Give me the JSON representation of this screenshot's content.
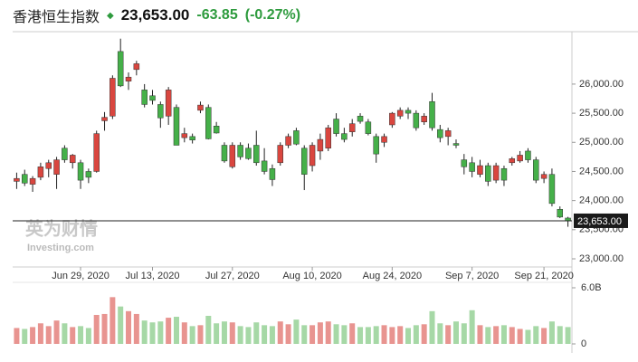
{
  "chart_data": {
    "type": "candlestick",
    "title": "香港恒生指数",
    "change": "-63.85",
    "change_pct": "(-0.27%)",
    "last_price": {
      "value": 23653,
      "label": "23,653.00"
    },
    "watermark": [
      "英为财情",
      "Investing.com"
    ],
    "categories": [
      null,
      null,
      null,
      null,
      null,
      null,
      null,
      null,
      "Jun 29, 2020",
      null,
      null,
      null,
      null,
      null,
      null,
      null,
      null,
      "Jul 13, 2020",
      null,
      null,
      null,
      null,
      null,
      null,
      null,
      null,
      null,
      "Jul 27, 2020",
      null,
      null,
      null,
      null,
      null,
      null,
      null,
      null,
      null,
      "Aug 10, 2020",
      null,
      null,
      null,
      null,
      null,
      null,
      null,
      null,
      null,
      "Aug 24, 2020",
      null,
      null,
      null,
      null,
      null,
      null,
      null,
      null,
      null,
      "Sep 7, 2020",
      null,
      null,
      null,
      null,
      null,
      null,
      null,
      null,
      "Sep 21, 2020",
      null,
      null,
      null
    ],
    "open": [
      24330,
      24450,
      24280,
      24400,
      24550,
      24450,
      24900,
      24650,
      24650,
      24500,
      24500,
      25370,
      25450,
      26560,
      26050,
      26250,
      25900,
      25800,
      25650,
      25450,
      25600,
      25080,
      25100,
      25550,
      25600,
      25280,
      24950,
      24580,
      24950,
      24900,
      24950,
      24680,
      24550,
      24650,
      24950,
      25200,
      24900,
      24600,
      24850,
      24900,
      25400,
      25150,
      25180,
      25450,
      25350,
      25100,
      25000,
      25300,
      25450,
      25550,
      25500,
      25350,
      25700,
      25220,
      25100,
      24980,
      24700,
      24650,
      24450,
      24600,
      24350,
      24550,
      24650,
      24680,
      24850,
      24700,
      24380,
      24450,
      23850,
      23700
    ],
    "high": [
      24480,
      24530,
      24420,
      24650,
      24700,
      24750,
      24950,
      24800,
      24700,
      24550,
      25200,
      25520,
      26150,
      26780,
      26200,
      26400,
      26000,
      25900,
      25700,
      25950,
      25650,
      25250,
      25150,
      25700,
      25650,
      25350,
      25000,
      25000,
      25000,
      24980,
      25200,
      24900,
      24620,
      25000,
      25150,
      25250,
      24950,
      25000,
      25150,
      25300,
      25500,
      25250,
      25400,
      25500,
      25400,
      25150,
      25150,
      25520,
      25600,
      25600,
      25550,
      25500,
      25850,
      25300,
      25250,
      25050,
      24800,
      24750,
      24700,
      24650,
      24650,
      24600,
      24750,
      24850,
      24900,
      24750,
      24500,
      24550,
      23900,
      23720
    ],
    "low": [
      24200,
      24250,
      24150,
      24350,
      24400,
      24200,
      24650,
      24550,
      24200,
      24300,
      24480,
      25200,
      25400,
      25950,
      25900,
      26150,
      25600,
      25650,
      25250,
      25300,
      24950,
      25000,
      24980,
      25500,
      25050,
      25150,
      24650,
      24550,
      24700,
      24700,
      24600,
      24450,
      24250,
      24600,
      24900,
      24950,
      24180,
      24500,
      24700,
      24850,
      25100,
      25000,
      25100,
      25320,
      25120,
      24650,
      24920,
      25250,
      25400,
      25400,
      25200,
      25300,
      25200,
      25000,
      24950,
      24900,
      24450,
      24400,
      24400,
      24250,
      24300,
      24250,
      24600,
      24650,
      24650,
      24300,
      24300,
      23900,
      23700,
      23550
    ],
    "close": [
      24380,
      24300,
      24380,
      24580,
      24650,
      24700,
      24700,
      24780,
      24350,
      24400,
      25150,
      25430,
      26100,
      25970,
      26120,
      26350,
      25650,
      25720,
      25420,
      25900,
      24950,
      25150,
      25040,
      25640,
      25060,
      25160,
      24680,
      24950,
      24750,
      24720,
      24650,
      24500,
      24360,
      24950,
      25100,
      24970,
      24450,
      24950,
      25050,
      25250,
      25150,
      25050,
      25320,
      25360,
      25150,
      24800,
      25100,
      25500,
      25550,
      25500,
      25250,
      25450,
      25250,
      25080,
      25200,
      24950,
      24580,
      24500,
      24600,
      24330,
      24600,
      24350,
      24720,
      24780,
      24700,
      24350,
      24450,
      23950,
      23717,
      23653
    ],
    "ylim": [
      22860,
      26900
    ],
    "yticks": [
      {
        "value": 23000,
        "label": "23,000.00"
      },
      {
        "value": 23500,
        "label": "23,500.00"
      },
      {
        "value": 24000,
        "label": "24,000.00"
      },
      {
        "value": 24500,
        "label": "24,500.00"
      },
      {
        "value": 25000,
        "label": "25,000.00"
      },
      {
        "value": 25500,
        "label": "25,500.00"
      },
      {
        "value": 26000,
        "label": "26,000.00"
      }
    ],
    "up_color": "#d9463f",
    "down_color": "#45b049",
    "volume": {
      "values": [
        1.7,
        1.6,
        1.8,
        2.2,
        1.9,
        2.5,
        2.2,
        1.8,
        1.9,
        1.7,
        3.1,
        3.2,
        5.0,
        4.0,
        3.5,
        3.2,
        2.5,
        2.3,
        2.4,
        2.8,
        2.9,
        2.3,
        1.9,
        2.0,
        3.0,
        2.2,
        2.4,
        2.3,
        1.9,
        1.8,
        2.3,
        2.0,
        1.9,
        2.4,
        2.1,
        2.6,
        2.0,
        2.0,
        2.3,
        2.4,
        2.1,
        2.0,
        2.2,
        1.8,
        1.8,
        1.9,
        2.0,
        1.8,
        1.9,
        1.7,
        2.0,
        2.1,
        3.5,
        2.2,
        2.0,
        2.4,
        2.2,
        3.6,
        2.0,
        1.8,
        1.9,
        2.0,
        1.8,
        1.6,
        1.5,
        1.9,
        1.7,
        2.4,
        1.9,
        1.8
      ],
      "ylim": [
        0,
        6
      ],
      "yticks": [
        0,
        {
          "value": 6,
          "label": "6.0B"
        }
      ],
      "up_color": "#e89490",
      "down_color": "#a6d8a6"
    }
  }
}
